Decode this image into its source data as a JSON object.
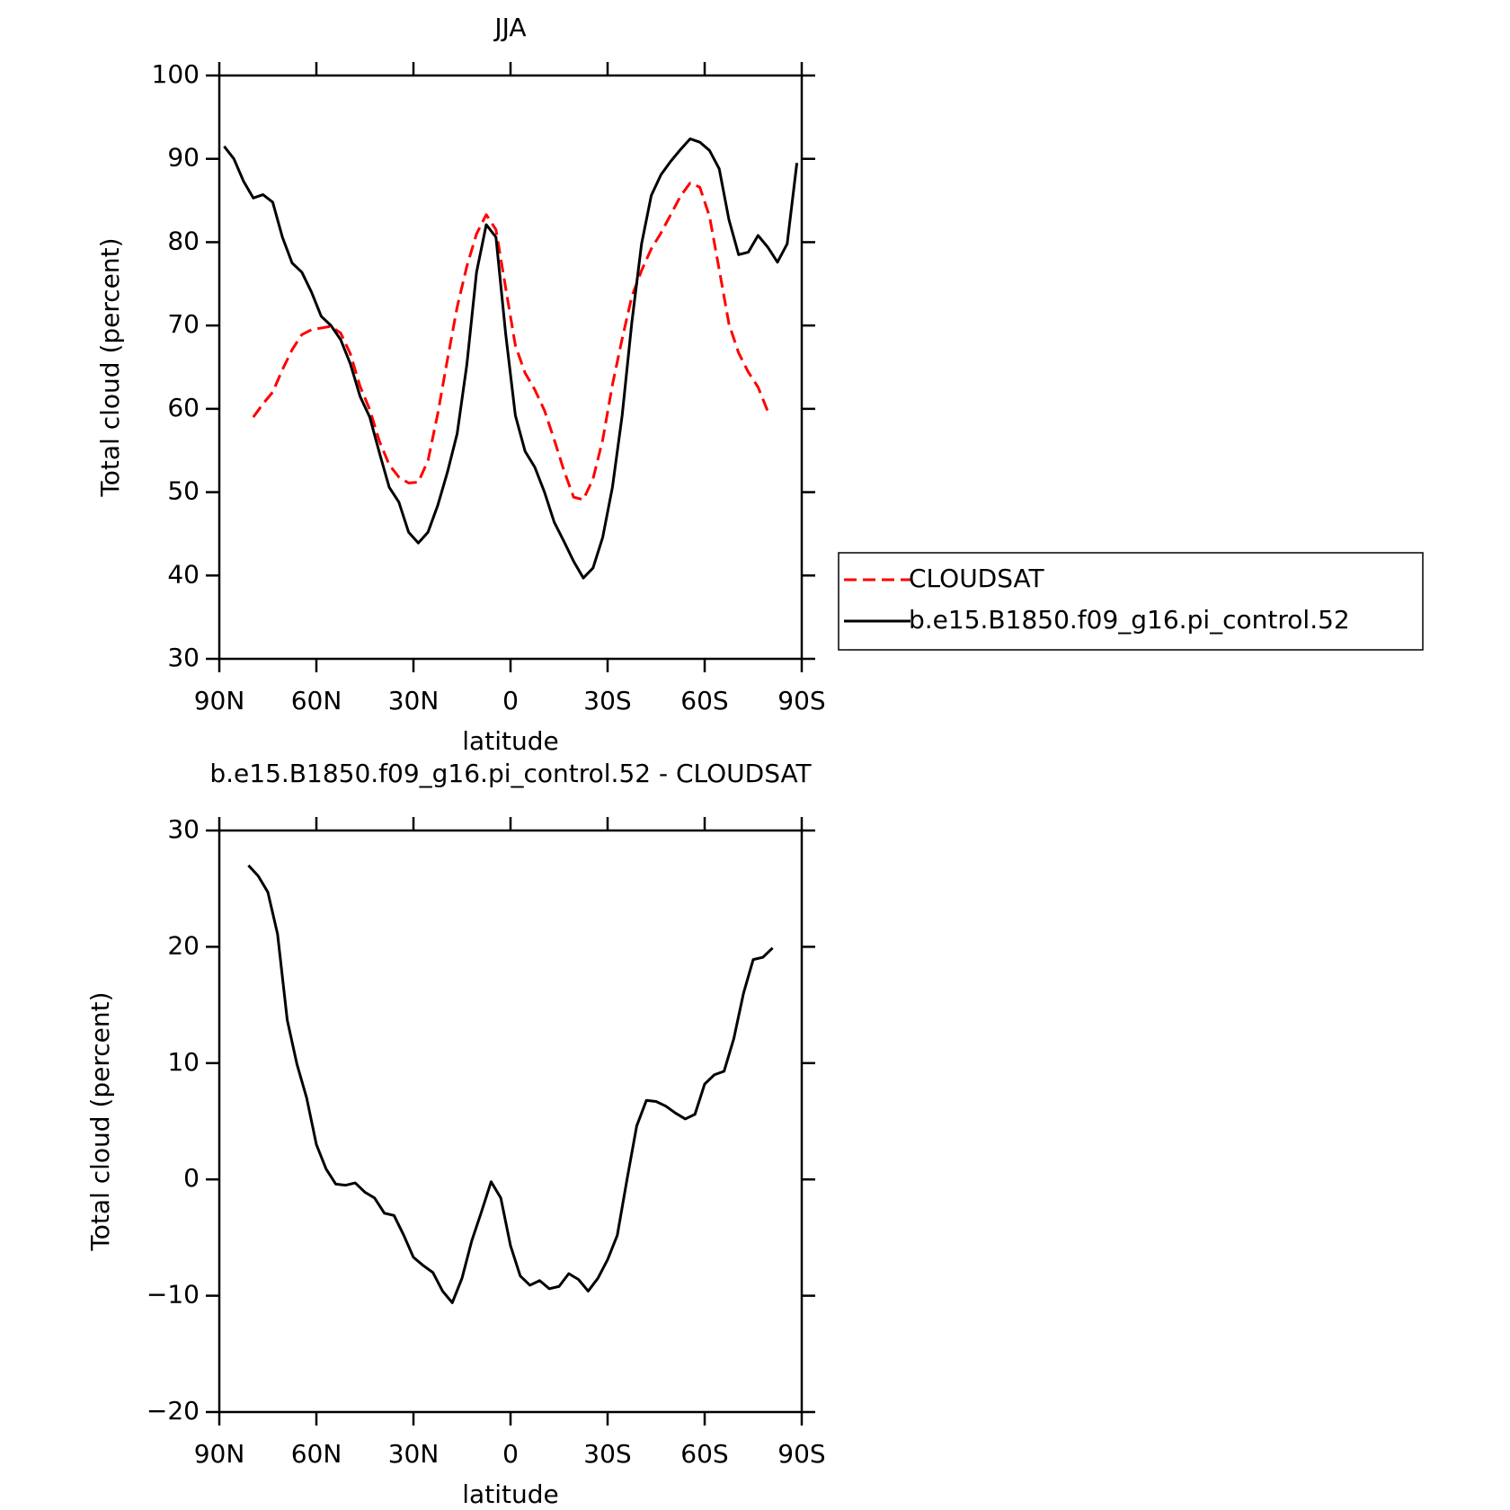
{
  "chart_data": [
    {
      "type": "line",
      "title": "JJA",
      "x_label": "latitude",
      "y_label": "Total cloud (percent)",
      "x": [
        88.5,
        85.5,
        82.5,
        79.5,
        76.5,
        73.5,
        70.5,
        67.5,
        64.5,
        61.5,
        58.5,
        55.5,
        52.5,
        49.5,
        46.5,
        43.5,
        40.5,
        37.5,
        34.5,
        31.5,
        28.5,
        25.5,
        22.5,
        19.5,
        16.5,
        13.5,
        10.5,
        7.5,
        4.5,
        1.5,
        -1.5,
        -4.5,
        -7.5,
        -10.5,
        -13.5,
        -16.5,
        -19.5,
        -22.5,
        -25.5,
        -28.5,
        -31.5,
        -34.5,
        -37.5,
        -40.5,
        -43.5,
        -46.5,
        -49.5,
        -52.5,
        -55.5,
        -58.5,
        -61.5,
        -64.5,
        -67.5,
        -70.5,
        -73.5,
        -76.5,
        -79.5,
        -82.5,
        -85.5,
        -88.5
      ],
      "series": [
        {
          "name": "CLOUDSAT",
          "color": "#ff0000",
          "line_style": "dashed",
          "values": [
            null,
            null,
            null,
            59.0,
            60.6,
            62.0,
            64.7,
            67.1,
            68.9,
            69.5,
            69.7,
            69.9,
            69.1,
            66.6,
            62.7,
            59.9,
            56.1,
            53.3,
            51.8,
            51.1,
            51.2,
            53.8,
            59.4,
            65.9,
            72.2,
            77.1,
            81.0,
            83.3,
            81.5,
            74.5,
            67.6,
            64.3,
            62.3,
            59.8,
            56.3,
            52.6,
            49.4,
            49.1,
            51.6,
            56.3,
            62.9,
            68.4,
            73.5,
            76.6,
            79.2,
            81.1,
            83.3,
            85.5,
            87.1,
            86.6,
            83.1,
            76.7,
            70.2,
            66.7,
            64.4,
            62.6,
            59.7,
            null,
            null,
            null
          ]
        },
        {
          "name": "b.e15.B1850.f09_g16.pi_control.52",
          "color": "#000000",
          "line_style": "solid",
          "values": [
            91.5,
            90.0,
            87.3,
            85.3,
            85.7,
            84.8,
            80.6,
            77.5,
            76.4,
            74.0,
            71.1,
            70.0,
            68.3,
            65.4,
            61.5,
            59.0,
            54.7,
            50.6,
            48.8,
            45.2,
            43.9,
            45.2,
            48.4,
            52.4,
            57.0,
            65.3,
            76.4,
            82.1,
            80.6,
            69.0,
            59.2,
            54.9,
            53.0,
            50.0,
            46.4,
            44.1,
            41.7,
            39.7,
            40.9,
            44.6,
            50.6,
            59.2,
            70.4,
            79.8,
            85.6,
            88.1,
            89.7,
            91.1,
            92.4,
            92.0,
            91.0,
            88.8,
            82.7,
            78.5,
            78.8,
            80.8,
            79.4,
            77.6,
            79.8,
            89.5
          ]
        }
      ],
      "xlim": [
        90,
        -90
      ],
      "xticks": [
        {
          "value": 90,
          "label": "90N"
        },
        {
          "value": 60,
          "label": "60N"
        },
        {
          "value": 30,
          "label": "30N"
        },
        0,
        {
          "value": -30,
          "label": "30S"
        },
        {
          "value": -60,
          "label": "60S"
        },
        {
          "value": -90,
          "label": "90S"
        }
      ],
      "ylim": [
        30,
        100
      ],
      "yticks": [
        30,
        40,
        50,
        60,
        70,
        80,
        90,
        100
      ],
      "legend": "right"
    },
    {
      "type": "line",
      "title": "b.e15.B1850.f09_g16.pi_control.52 - CLOUDSAT",
      "x_label": "latitude",
      "y_label": "Total cloud (percent)",
      "x": [
        81,
        78,
        75,
        72,
        69,
        66,
        63,
        60,
        57,
        54,
        51,
        48,
        45,
        42,
        39,
        36,
        33,
        30,
        27,
        24,
        21,
        18,
        15,
        12,
        9,
        6,
        3,
        0,
        -3,
        -6,
        -9,
        -12,
        -15,
        -18,
        -21,
        -24,
        -27,
        -30,
        -33,
        -36,
        -39,
        -42,
        -45,
        -48,
        -51,
        -54,
        -57,
        -60,
        -63,
        -66,
        -69,
        -72,
        -75,
        -78,
        -81
      ],
      "series": [
        {
          "color": "#000000",
          "line_style": "solid",
          "values": [
            27.0,
            26.1,
            24.7,
            21.1,
            13.7,
            9.9,
            7.0,
            3.0,
            0.9,
            -0.4,
            -0.5,
            -0.3,
            -1.1,
            -1.6,
            -2.9,
            -3.1,
            -4.8,
            -6.7,
            -7.4,
            -8.0,
            -9.6,
            -10.6,
            -8.5,
            -5.3,
            -2.8,
            -0.2,
            -1.6,
            -5.7,
            -8.3,
            -9.1,
            -8.7,
            -9.4,
            -9.2,
            -8.1,
            -8.6,
            -9.6,
            -8.5,
            -6.9,
            -4.8,
            0.0,
            4.6,
            6.8,
            6.7,
            6.3,
            5.7,
            5.2,
            5.6,
            8.2,
            9.0,
            9.3,
            12.1,
            16.0,
            18.9,
            19.1,
            19.9
          ]
        }
      ],
      "xlim": [
        90,
        -90
      ],
      "xticks": [
        {
          "value": 90,
          "label": "90N"
        },
        {
          "value": 60,
          "label": "60N"
        },
        {
          "value": 30,
          "label": "30N"
        },
        0,
        {
          "value": -30,
          "label": "30S"
        },
        {
          "value": -60,
          "label": "60S"
        },
        {
          "value": -90,
          "label": "90S"
        }
      ],
      "ylim": [
        -20,
        30
      ],
      "yticks": [
        {
          "value": -20,
          "label": "−20"
        },
        {
          "value": -10,
          "label": "−10"
        },
        0,
        10,
        20,
        30
      ]
    }
  ]
}
